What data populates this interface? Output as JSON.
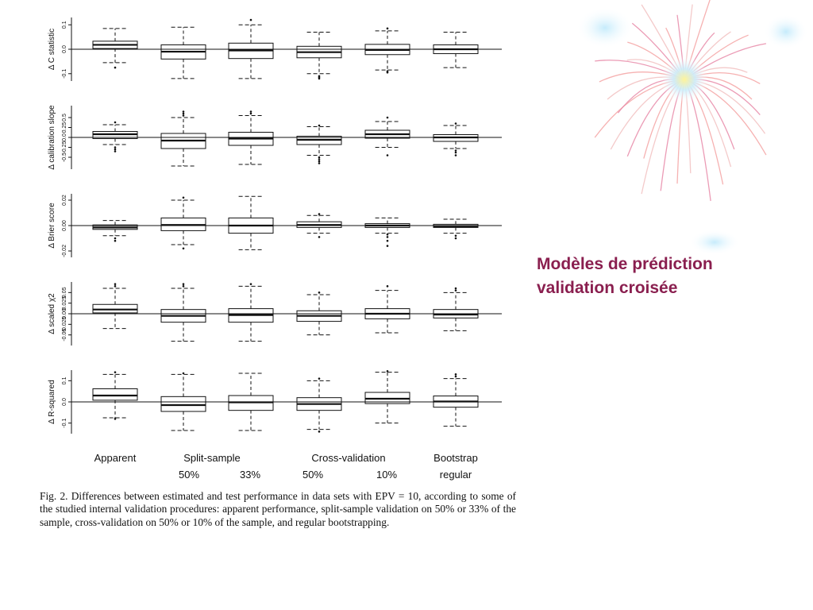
{
  "slide_title": {
    "line1": "Modèles de prédiction",
    "line2": "validation croisée"
  },
  "caption": "Fig. 2. Differences between estimated and test performance in data sets with EPV = 10, according to some of the studied internal validation procedures: apparent performance, split-sample validation on 50% or 33% of the sample, cross-validation on 50% or 10% of the sample, and regular bootstrapping.",
  "group_labels": {
    "row1": [
      "Apparent",
      "Split-sample",
      "Cross-validation",
      "Bootstrap"
    ],
    "row2": [
      "50%",
      "33%",
      "50%",
      "10%",
      "regular"
    ]
  },
  "colors": {
    "title": "#8a1f4f",
    "ink": "#111111",
    "fireworks": [
      "#f4a3a3",
      "#e88aa8",
      "#f2c1c1",
      "#9ed8f0",
      "#fff59a"
    ]
  },
  "chart_data": [
    {
      "type": "box",
      "ylabel": "Δ C statistic",
      "yticks": [
        "-0.1",
        "0.0",
        "0.1"
      ],
      "ylim": [
        -0.13,
        0.13
      ],
      "boxes": [
        {
          "q1": 0.003,
          "median": 0.018,
          "q3": 0.033,
          "wlo": -0.055,
          "whi": 0.085,
          "outliers": [
            -0.075
          ]
        },
        {
          "q1": -0.04,
          "median": -0.01,
          "q3": 0.018,
          "wlo": -0.12,
          "whi": 0.09,
          "outliers": []
        },
        {
          "q1": -0.038,
          "median": -0.005,
          "q3": 0.025,
          "wlo": -0.12,
          "whi": 0.1,
          "outliers": [
            0.12
          ]
        },
        {
          "q1": -0.035,
          "median": -0.012,
          "q3": 0.012,
          "wlo": -0.1,
          "whi": 0.07,
          "outliers": [
            -0.11,
            -0.115,
            -0.12
          ]
        },
        {
          "q1": -0.022,
          "median": -0.003,
          "q3": 0.02,
          "wlo": -0.085,
          "whi": 0.075,
          "outliers": [
            -0.09,
            -0.095,
            0.085
          ]
        },
        {
          "q1": -0.018,
          "median": 0.0,
          "q3": 0.018,
          "wlo": -0.075,
          "whi": 0.07,
          "outliers": []
        }
      ]
    },
    {
      "type": "box",
      "ylabel": "Δ calibration slope",
      "yticks": [
        "-0.5",
        "-0.25",
        "0.0",
        "0.25",
        "0.5"
      ],
      "ylim": [
        -0.8,
        0.8
      ],
      "boxes": [
        {
          "q1": -0.03,
          "median": 0.08,
          "q3": 0.15,
          "wlo": -0.18,
          "whi": 0.32,
          "outliers": [
            0.38,
            -0.25,
            -0.3,
            -0.35
          ]
        },
        {
          "q1": -0.28,
          "median": -0.08,
          "q3": 0.1,
          "wlo": -0.72,
          "whi": 0.5,
          "outliers": [
            0.55,
            0.6,
            0.65
          ]
        },
        {
          "q1": -0.2,
          "median": -0.03,
          "q3": 0.13,
          "wlo": -0.68,
          "whi": 0.55,
          "outliers": [
            0.6,
            0.65
          ]
        },
        {
          "q1": -0.18,
          "median": -0.06,
          "q3": 0.03,
          "wlo": -0.45,
          "whi": 0.27,
          "outliers": [
            0.3,
            -0.5,
            -0.55,
            -0.6,
            -0.65
          ]
        },
        {
          "q1": -0.02,
          "median": 0.08,
          "q3": 0.18,
          "wlo": -0.25,
          "whi": 0.4,
          "outliers": [
            0.5,
            -0.45
          ]
        },
        {
          "q1": -0.1,
          "median": 0.0,
          "q3": 0.07,
          "wlo": -0.28,
          "whi": 0.3,
          "outliers": [
            0.35,
            -0.33,
            -0.38,
            -0.45
          ]
        }
      ]
    },
    {
      "type": "box",
      "ylabel": "Δ Brier score",
      "yticks": [
        "-0.02",
        "0.00",
        "0.02"
      ],
      "ylim": [
        -0.025,
        0.025
      ],
      "boxes": [
        {
          "q1": -0.003,
          "median": -0.0015,
          "q3": 0.0005,
          "wlo": -0.008,
          "whi": 0.004,
          "outliers": [
            -0.01,
            -0.012
          ]
        },
        {
          "q1": -0.004,
          "median": 0.0005,
          "q3": 0.006,
          "wlo": -0.015,
          "whi": 0.02,
          "outliers": [
            0.022,
            -0.018
          ]
        },
        {
          "q1": -0.006,
          "median": 0.0,
          "q3": 0.006,
          "wlo": -0.019,
          "whi": 0.023,
          "outliers": []
        },
        {
          "q1": -0.0015,
          "median": 0.0005,
          "q3": 0.003,
          "wlo": -0.006,
          "whi": 0.008,
          "outliers": [
            0.009,
            -0.009
          ]
        },
        {
          "q1": -0.0015,
          "median": 0.0,
          "q3": 0.0015,
          "wlo": -0.006,
          "whi": 0.006,
          "outliers": [
            -0.007,
            -0.009,
            -0.012,
            -0.016
          ]
        },
        {
          "q1": -0.0015,
          "median": -0.0005,
          "q3": 0.001,
          "wlo": -0.006,
          "whi": 0.005,
          "outliers": [
            -0.008,
            -0.01
          ]
        }
      ]
    },
    {
      "type": "box",
      "ylabel": "Δ scaled χ2",
      "yticks": [
        "-0.05",
        "-0.025",
        "0.00",
        "0.025",
        "0.05"
      ],
      "ylim": [
        -0.075,
        0.075
      ],
      "boxes": [
        {
          "q1": 0.002,
          "median": 0.01,
          "q3": 0.022,
          "wlo": -0.035,
          "whi": 0.06,
          "outliers": [
            0.065,
            0.07
          ]
        },
        {
          "q1": -0.02,
          "median": -0.005,
          "q3": 0.01,
          "wlo": -0.065,
          "whi": 0.06,
          "outliers": [
            0.065,
            0.07
          ]
        },
        {
          "q1": -0.02,
          "median": -0.003,
          "q3": 0.012,
          "wlo": -0.065,
          "whi": 0.065,
          "outliers": [
            0.07
          ]
        },
        {
          "q1": -0.018,
          "median": -0.005,
          "q3": 0.007,
          "wlo": -0.05,
          "whi": 0.045,
          "outliers": [
            0.05
          ]
        },
        {
          "q1": -0.012,
          "median": 0.0,
          "q3": 0.012,
          "wlo": -0.045,
          "whi": 0.055,
          "outliers": [
            0.065
          ]
        },
        {
          "q1": -0.01,
          "median": -0.002,
          "q3": 0.01,
          "wlo": -0.04,
          "whi": 0.05,
          "outliers": [
            0.055,
            0.06
          ]
        }
      ]
    },
    {
      "type": "box",
      "ylabel": "Δ R-squared",
      "yticks": [
        "-0.1",
        "0.0",
        "0.1"
      ],
      "ylim": [
        -0.15,
        0.15
      ],
      "boxes": [
        {
          "q1": 0.008,
          "median": 0.03,
          "q3": 0.062,
          "wlo": -0.075,
          "whi": 0.13,
          "outliers": [
            0.14,
            -0.08
          ]
        },
        {
          "q1": -0.045,
          "median": -0.015,
          "q3": 0.025,
          "wlo": -0.135,
          "whi": 0.13,
          "outliers": [
            0.135
          ]
        },
        {
          "q1": -0.04,
          "median": -0.002,
          "q3": 0.03,
          "wlo": -0.135,
          "whi": 0.135,
          "outliers": []
        },
        {
          "q1": -0.04,
          "median": -0.01,
          "q3": 0.02,
          "wlo": -0.13,
          "whi": 0.1,
          "outliers": [
            0.11,
            -0.14
          ]
        },
        {
          "q1": -0.008,
          "median": 0.015,
          "q3": 0.045,
          "wlo": -0.1,
          "whi": 0.14,
          "outliers": [
            0.145
          ]
        },
        {
          "q1": -0.025,
          "median": 0.002,
          "q3": 0.028,
          "wlo": -0.115,
          "whi": 0.11,
          "outliers": [
            0.12,
            0.13
          ]
        }
      ]
    }
  ]
}
